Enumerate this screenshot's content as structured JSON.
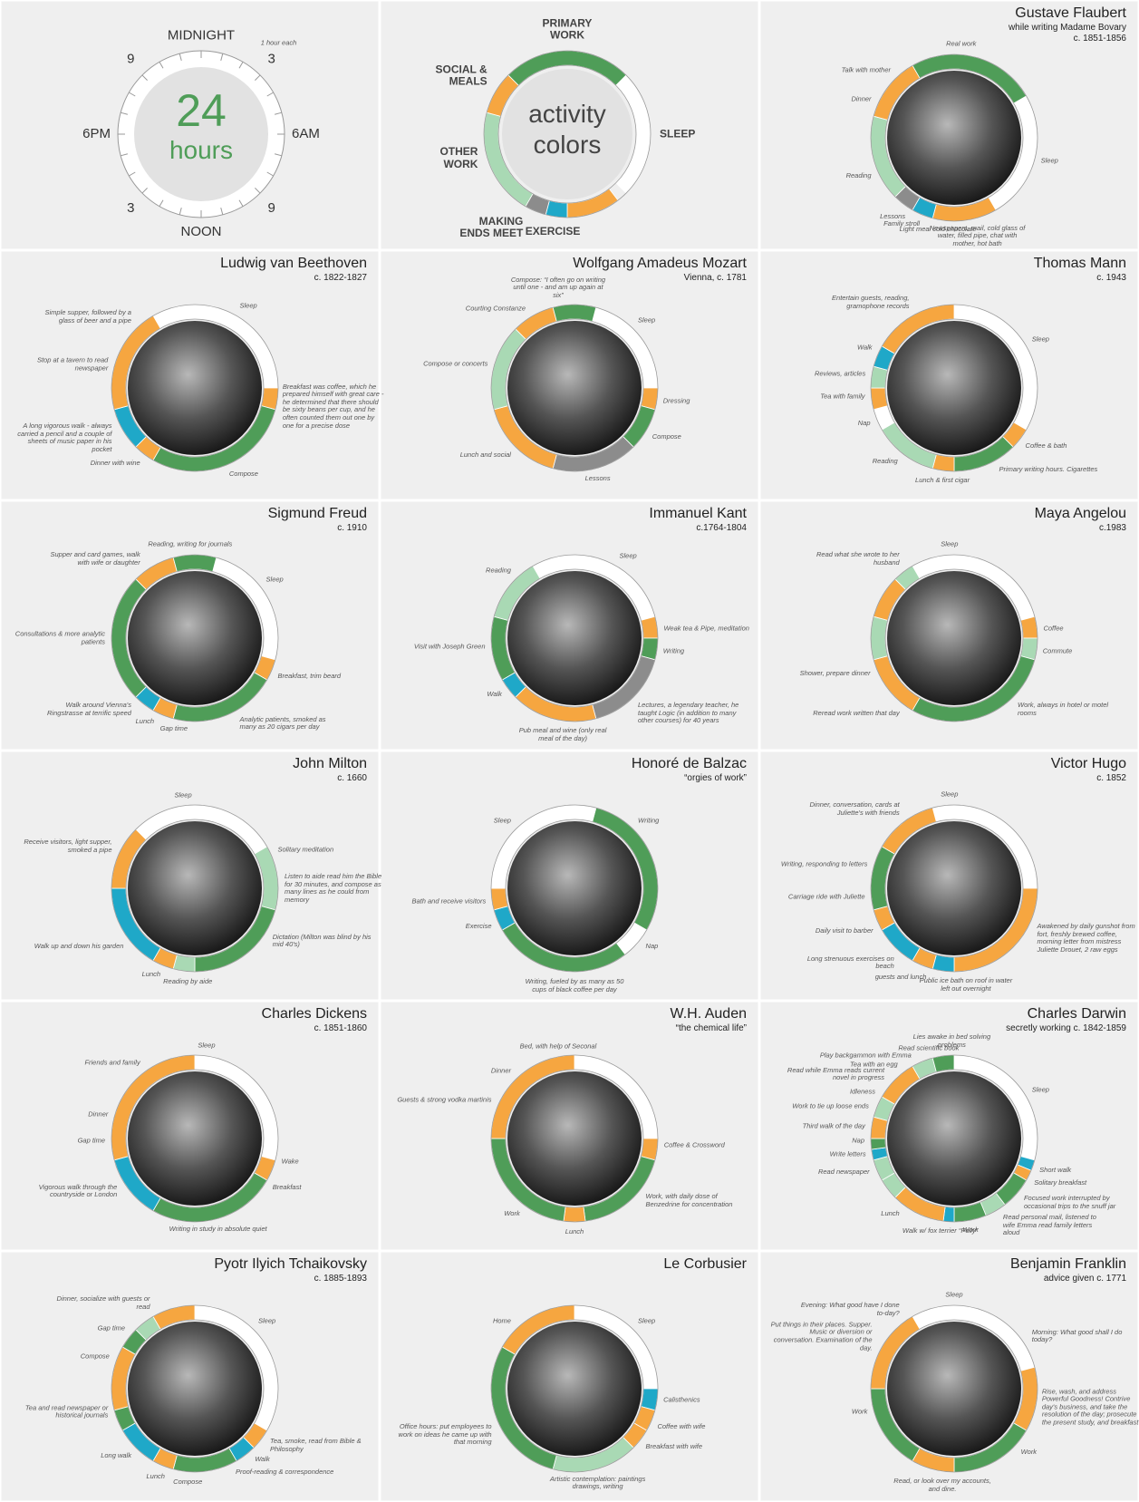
{
  "clock": {
    "number": "24",
    "unit": "hours",
    "labels": [
      "MIDNIGHT",
      "3",
      "6AM",
      "9",
      "NOON",
      "3",
      "6PM",
      "9"
    ],
    "note": "1 hour each"
  },
  "legend": {
    "center_text": [
      "activity",
      "colors"
    ],
    "activities": [
      {
        "name": "PRIMARY WORK",
        "color": "#4f9d58"
      },
      {
        "name": "SLEEP",
        "color": "#ffffff"
      },
      {
        "name": "EXERCISE",
        "color": "#1fa8c8"
      },
      {
        "name": "MAKING ENDS MEET",
        "color": "#8c8c8c"
      },
      {
        "name": "OTHER WORK",
        "color": "#a9d9b4"
      },
      {
        "name": "SOCIAL & MEALS",
        "color": "#f6a640"
      }
    ],
    "segments": [
      [
        21,
        3,
        0
      ],
      [
        3,
        9,
        1
      ],
      [
        9.5,
        12,
        5
      ],
      [
        12,
        13,
        2
      ],
      [
        13,
        14,
        3
      ],
      [
        14,
        19,
        4
      ],
      [
        19,
        21,
        5
      ]
    ]
  },
  "persons": [
    {
      "name": "Gustave Flaubert",
      "subtitle": [
        "while writing Madame Bovary",
        "c. 1851-1856"
      ],
      "labels": [
        "Real work",
        "Talk with mother",
        "Dinner",
        "Sleep",
        "Reading",
        "Lessons",
        "Family stroll",
        "Light meal cold chocolate",
        "Newspapers, mail, cold glass of water, filled pipe, chat with mother, hot bath"
      ],
      "segments": [
        [
          22,
          4,
          0
        ],
        [
          4,
          10,
          1
        ],
        [
          10,
          13,
          5
        ],
        [
          13,
          14,
          2
        ],
        [
          14,
          15,
          3
        ],
        [
          15,
          19,
          4
        ],
        [
          19,
          22,
          5
        ]
      ]
    },
    {
      "name": "Ludwig van Beethoven",
      "subtitle": [
        "c. 1822-1827"
      ],
      "labels": [
        "Sleep",
        "Simple supper, followed by a glass of beer and a pipe",
        "Stop at a tavern to read newspaper",
        "A long vigorous walk - always carried a pencil and a couple of sheets of music paper in his pocket",
        "Dinner with wine",
        "Compose",
        "Breakfast was coffee, which he prepared himself with great care - he determined that there should be sixty beans per cup, and he often counted them out one by one for a precise dose"
      ],
      "segments": [
        [
          22,
          6,
          1
        ],
        [
          6,
          7,
          5
        ],
        [
          7,
          14,
          0
        ],
        [
          14,
          15,
          5
        ],
        [
          15,
          17,
          2
        ],
        [
          17,
          22,
          5
        ]
      ]
    },
    {
      "name": "Wolfgang Amadeus Mozart",
      "subtitle": [
        "Vienna, c. 1781"
      ],
      "labels": [
        "Compose: “I often go on writing until one - and am up again at six”",
        "Courting Constanze",
        "Sleep",
        "Compose or concerts",
        "Dressing",
        "Compose",
        "Lessons",
        "Lunch and social"
      ],
      "segments": [
        [
          1,
          6,
          1
        ],
        [
          6,
          7,
          5
        ],
        [
          7,
          9,
          0
        ],
        [
          9,
          13,
          3
        ],
        [
          13,
          17,
          5
        ],
        [
          17,
          21,
          4
        ],
        [
          21,
          23,
          5
        ],
        [
          23,
          1,
          0
        ]
      ]
    },
    {
      "name": "Thomas Mann",
      "subtitle": [
        "c. 1943"
      ],
      "labels": [
        "Entertain guests, reading, gramophone records",
        "Sleep",
        "Walk",
        "Reviews, articles",
        "Tea with family",
        "Nap",
        "Reading",
        "Lunch & first cigar",
        "Primary writing hours. Cigarettes",
        "Coffee & bath"
      ],
      "segments": [
        [
          0,
          8,
          1
        ],
        [
          8,
          9,
          5
        ],
        [
          9,
          12,
          0
        ],
        [
          12,
          13,
          5
        ],
        [
          13,
          16,
          4
        ],
        [
          16,
          17,
          1
        ],
        [
          17,
          18,
          5
        ],
        [
          18,
          19,
          4
        ],
        [
          19,
          20,
          2
        ],
        [
          20,
          24,
          5
        ]
      ]
    },
    {
      "name": "Sigmund Freud",
      "subtitle": [
        "c. 1910"
      ],
      "labels": [
        "Reading, writing for journals",
        "Supper and card games, walk with wife or daughter",
        "Sleep",
        "Breakfast, trim beard",
        "Consultations & more analytic patients",
        "Walk around Vienna's Ringstrasse at terrific speed",
        "Lunch",
        "Gap time",
        "Analytic patients, smoked as many as 20 cigars per day"
      ],
      "segments": [
        [
          1,
          7,
          1
        ],
        [
          7,
          8,
          5
        ],
        [
          8,
          13,
          0
        ],
        [
          13,
          14,
          5
        ],
        [
          14,
          15,
          2
        ],
        [
          15,
          21,
          0
        ],
        [
          21,
          23,
          5
        ],
        [
          23,
          1,
          0
        ]
      ]
    },
    {
      "name": "Immanuel Kant",
      "subtitle": [
        "c.1764-1804"
      ],
      "labels": [
        "Sleep",
        "Reading",
        "Weak tea & Pipe, meditation",
        "Writing",
        "Visit with Joseph Green",
        "Walk",
        "Pub meal and wine (only real meal of the day)",
        "Lectures, a legendary teacher, he taught Logic (in addition to many other courses) for 40 years"
      ],
      "segments": [
        [
          22,
          5,
          1
        ],
        [
          5,
          6,
          5
        ],
        [
          6,
          7,
          0
        ],
        [
          7,
          11,
          3
        ],
        [
          11,
          15,
          5
        ],
        [
          15,
          16,
          2
        ],
        [
          16,
          19,
          0
        ],
        [
          19,
          22,
          4
        ]
      ]
    },
    {
      "name": "Maya Angelou",
      "subtitle": [
        "c.1983"
      ],
      "labels": [
        "Sleep",
        "Read what she wrote to her husband",
        "Coffee",
        "Commute",
        "Shower, prepare dinner",
        "Reread work written that day",
        "Work, always in hotel or motel rooms"
      ],
      "segments": [
        [
          22,
          5,
          1
        ],
        [
          5,
          6,
          5
        ],
        [
          6,
          7,
          4
        ],
        [
          7,
          14,
          0
        ],
        [
          14,
          17,
          5
        ],
        [
          17,
          19,
          4
        ],
        [
          19,
          21,
          5
        ],
        [
          21,
          22,
          4
        ]
      ]
    },
    {
      "name": "John Milton",
      "subtitle": [
        "c. 1660"
      ],
      "labels": [
        "Sleep",
        "Solitary meditation",
        "Listen to aide read him the Bible for 30 minutes, and compose as many lines as he could from memory",
        "Receive visitors, light supper, smoked a pipe",
        "Dictation (Milton was blind by his mid 40's)",
        "Walk up and down his garden",
        "Lunch",
        "Reading by aide"
      ],
      "segments": [
        [
          21,
          4,
          1
        ],
        [
          4,
          7,
          4
        ],
        [
          7,
          12,
          0
        ],
        [
          12,
          13,
          4
        ],
        [
          13,
          14,
          5
        ],
        [
          14,
          18,
          2
        ],
        [
          18,
          21,
          5
        ]
      ]
    },
    {
      "name": "Honoré de Balzac",
      "subtitle": [
        "“orgies of work”"
      ],
      "labels": [
        "Writing",
        "Sleep",
        "Bath and receive visitors",
        "Exercise",
        "Nap",
        "Writing, fueled by as many as 50 cups of black coffee per day"
      ],
      "segments": [
        [
          1,
          8,
          0
        ],
        [
          8,
          9.5,
          1
        ],
        [
          9.5,
          16,
          0
        ],
        [
          16,
          17,
          2
        ],
        [
          17,
          18,
          5
        ],
        [
          18,
          1,
          1
        ]
      ]
    },
    {
      "name": "Victor Hugo",
      "subtitle": [
        "c. 1852"
      ],
      "labels": [
        "Sleep",
        "Dinner, conversation, cards at Juliette's with friends",
        "Writing, responding to letters",
        "Carriage ride with Juliette",
        "Daily visit to barber",
        "Long strenuous exercises on beach",
        "guests and lunch",
        "Public ice bath on roof in water left out overnight",
        "Awakened by daily gunshot from fort, freshly brewed coffee, morning letter from mistress Juliette Drouet, 2 raw eggs"
      ],
      "segments": [
        [
          23,
          6,
          1
        ],
        [
          6,
          12,
          5
        ],
        [
          12,
          13,
          2
        ],
        [
          13,
          14,
          5
        ],
        [
          14,
          16,
          2
        ],
        [
          16,
          17,
          5
        ],
        [
          17,
          20,
          0
        ],
        [
          20,
          23,
          5
        ]
      ]
    },
    {
      "name": "Charles Dickens",
      "subtitle": [
        "c. 1851-1860"
      ],
      "labels": [
        "Sleep",
        "Friends and family",
        "Dinner",
        "Gap time",
        "Vigorous walk through the countryside or London",
        "Wake",
        "Breakfast",
        "Writing in study in absolute quiet"
      ],
      "segments": [
        [
          0,
          7,
          1
        ],
        [
          7,
          8,
          5
        ],
        [
          8,
          14,
          0
        ],
        [
          14,
          17,
          2
        ],
        [
          17,
          24,
          5
        ]
      ]
    },
    {
      "name": "W.H. Auden",
      "subtitle": [
        "“the chemical life”"
      ],
      "labels": [
        "Bed, with help of Seconal",
        "Dinner",
        "Guests & strong vodka martinis",
        "Coffee & Crossword",
        "Work, with daily dose of Benzedrine for concentration",
        "Work",
        "Lunch"
      ],
      "segments": [
        [
          0,
          6,
          1
        ],
        [
          6,
          7,
          5
        ],
        [
          7,
          11.5,
          0
        ],
        [
          11.5,
          12.5,
          5
        ],
        [
          12.5,
          18,
          0
        ],
        [
          18,
          24,
          5
        ]
      ]
    },
    {
      "name": "Charles Darwin",
      "subtitle": [
        "secretly working c. 1842-1859"
      ],
      "labels": [
        "Lies awake in bed solving problems",
        "Read scientific book",
        "Play backgammon with Emma",
        "Tea with an egg",
        "Read while Emma reads current novel in progress",
        "Idleness",
        "Work to tie up loose ends",
        "Third walk of the day",
        "Nap",
        "Write letters",
        "Read newspaper",
        "Lunch",
        "Walk w/ fox terrier “Polly”",
        "Work",
        "Read personal mail, listened to wife Emma read family letters aloud",
        "Focused work interrupted by occasional trips to the snuff jar",
        "Solitary breakfast",
        "Short walk",
        "Sleep"
      ],
      "segments": [
        [
          0,
          7,
          1
        ],
        [
          7,
          7.5,
          2
        ],
        [
          7.5,
          8,
          5
        ],
        [
          8,
          9.5,
          0
        ],
        [
          9.5,
          10.5,
          4
        ],
        [
          10.5,
          12,
          0
        ],
        [
          12,
          12.5,
          2
        ],
        [
          12.5,
          15,
          5
        ],
        [
          15,
          16,
          4
        ],
        [
          16,
          17,
          4
        ],
        [
          17,
          17.5,
          2
        ],
        [
          17.5,
          18,
          0
        ],
        [
          18,
          19,
          5
        ],
        [
          19,
          20,
          4
        ],
        [
          20,
          22,
          5
        ],
        [
          22,
          23,
          4
        ],
        [
          23,
          24,
          0
        ]
      ]
    },
    {
      "name": "Pyotr Ilyich Tchaikovsky",
      "subtitle": [
        "c. 1885-1893"
      ],
      "labels": [
        "Sleep",
        "Dinner, socialize with guests or read",
        "Gap time",
        "Compose",
        "Tea and read newspaper or historical journals",
        "Long walk",
        "Lunch",
        "Compose",
        "Walk",
        "Proof-reading & correspondence",
        "Tea, smoke, read from Bible & Philosophy"
      ],
      "segments": [
        [
          0,
          8,
          1
        ],
        [
          8,
          9,
          5
        ],
        [
          9,
          10,
          2
        ],
        [
          10,
          13,
          0
        ],
        [
          13,
          14,
          5
        ],
        [
          14,
          16,
          2
        ],
        [
          16,
          17,
          0
        ],
        [
          17,
          20,
          5
        ],
        [
          20,
          21,
          0
        ],
        [
          21,
          22,
          4
        ],
        [
          22,
          24,
          5
        ]
      ]
    },
    {
      "name": "Le Corbusier",
      "subtitle": [],
      "labels": [
        "Sleep",
        "Home",
        "Calisthenics",
        "Coffee with wife",
        "Breakfast with wife",
        "Artistic contemplation: paintings drawings, writing",
        "Office hours: put employees to work on ideas he came up with that morning"
      ],
      "segments": [
        [
          0,
          6,
          1
        ],
        [
          6,
          7,
          2
        ],
        [
          7,
          8,
          5
        ],
        [
          8,
          9,
          5
        ],
        [
          9,
          13,
          4
        ],
        [
          13,
          20,
          0
        ],
        [
          20,
          24,
          5
        ]
      ]
    },
    {
      "name": "Benjamin Franklin",
      "subtitle": [
        "advice given c. 1771"
      ],
      "labels": [
        "Sleep",
        "Evening: What good have I done to-day?",
        "Put things in their places. Supper. Music or diversion or conversation. Examination of the day.",
        "Morning: What good shall I do today?",
        "Rise, wash, and address Powerful Goodness! Contrive day's business, and take the resolution of the day; prosecute the present study, and breakfast",
        "Work",
        "Work",
        "Read, or look over my accounts, and dine."
      ],
      "segments": [
        [
          22,
          5,
          1
        ],
        [
          5,
          8,
          5
        ],
        [
          8,
          12,
          0
        ],
        [
          12,
          14,
          5
        ],
        [
          14,
          18,
          0
        ],
        [
          18,
          22,
          5
        ]
      ]
    }
  ]
}
